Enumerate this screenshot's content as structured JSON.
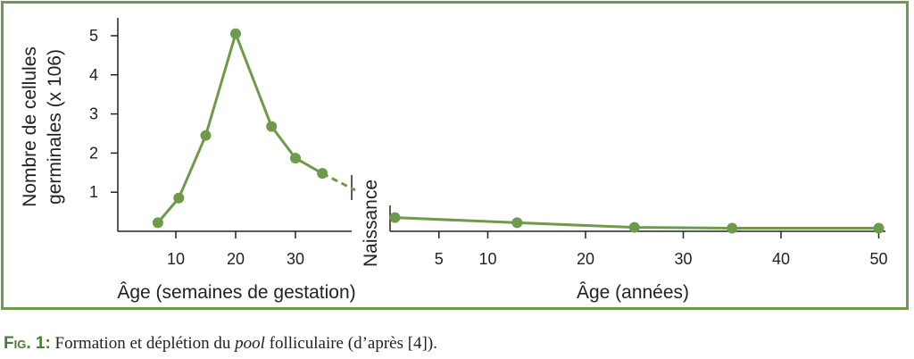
{
  "chart_data": {
    "type": "line",
    "ylabel_line1": "Nombre de cellules",
    "ylabel_line2": "germinales (x 106)",
    "divider_label": "Naissance",
    "color": "#6e9a4c",
    "panels": [
      {
        "xlabel": "Âge (semaines de gestation)",
        "x_ticks": [
          10,
          20,
          30
        ],
        "y_ticks": [
          1,
          2,
          3,
          4,
          5
        ],
        "xlim": [
          0,
          40
        ],
        "ylim": [
          0,
          5.3
        ],
        "series": [
          {
            "x": [
              7,
              10.5,
              15,
              20,
              26,
              30,
              34.5
            ],
            "y": [
              0.22,
              0.85,
              2.45,
              5.05,
              2.68,
              1.87,
              1.48
            ]
          }
        ],
        "extrapolation": {
          "x": [
            34.5,
            40
          ],
          "y": [
            1.48,
            1.05
          ]
        }
      },
      {
        "xlabel": "Âge (années)",
        "x_ticks": [
          5,
          10,
          20,
          30,
          40,
          50
        ],
        "xlim": [
          0,
          51
        ],
        "ylim": [
          0,
          5.3
        ],
        "series": [
          {
            "x": [
              0.5,
              13,
              25,
              35,
              50
            ],
            "y": [
              0.35,
              0.22,
              0.1,
              0.08,
              0.08
            ]
          }
        ]
      }
    ]
  },
  "caption": {
    "label": "Fig. 1:",
    "text_before": " Formation et déplétion du ",
    "text_italic": "pool",
    "text_after": " folliculaire (d’après [4])."
  }
}
